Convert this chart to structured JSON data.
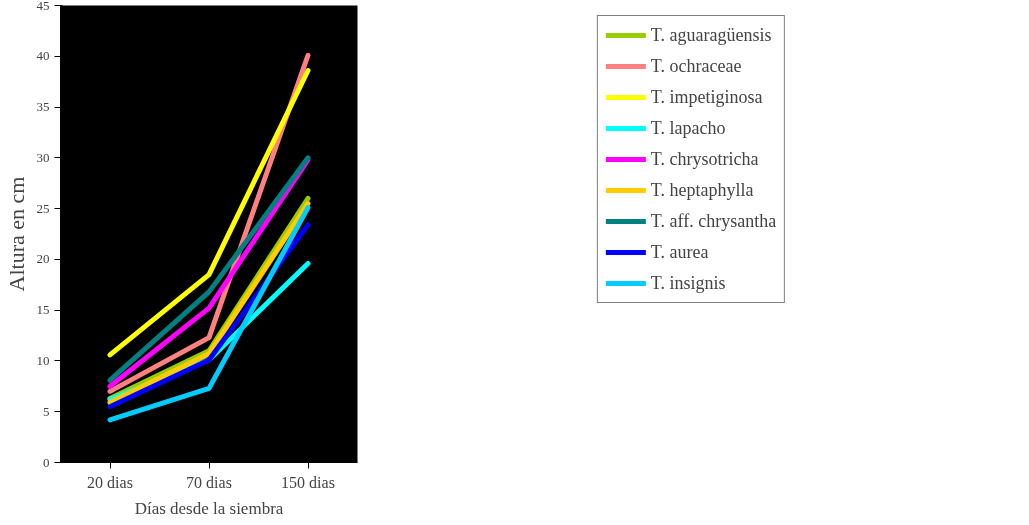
{
  "chart_data": {
    "type": "line",
    "xlabel": "Días desde la siembra",
    "ylabel": "Altura en cm",
    "categories": [
      "20 dias",
      "70 dias",
      "150 dias"
    ],
    "ylim": [
      0,
      45
    ],
    "yticks": [
      0,
      5,
      10,
      15,
      20,
      25,
      30,
      35,
      40,
      45
    ],
    "grid": false,
    "legend": "right",
    "marker": "none",
    "line_style": "solid",
    "series": [
      {
        "name": "T. aguaragüensis",
        "color": "#99cc00",
        "values": [
          6.3,
          11.0,
          26.0
        ]
      },
      {
        "name": "T. ochraceae",
        "color": "#ff8080",
        "values": [
          7.0,
          12.3,
          40.1
        ]
      },
      {
        "name": "T. impetiginosa",
        "color": "#ffff00",
        "values": [
          10.6,
          18.5,
          38.6
        ]
      },
      {
        "name": "T. lapacho",
        "color": "#00ffff",
        "values": [
          6.2,
          10.1,
          19.6
        ]
      },
      {
        "name": "T. chrysotricha",
        "color": "#ff00ff",
        "values": [
          7.5,
          15.2,
          29.8
        ]
      },
      {
        "name": "T. heptaphylla",
        "color": "#ffcc00",
        "values": [
          5.9,
          10.7,
          25.5
        ]
      },
      {
        "name": "T. aff. chrysantha",
        "color": "#008080",
        "values": [
          8.1,
          16.8,
          30.0
        ]
      },
      {
        "name": "T. aurea",
        "color": "#0000ff",
        "values": [
          5.5,
          10.1,
          23.4
        ]
      },
      {
        "name": "T. insignis",
        "color": "#00ccff",
        "values": [
          4.2,
          7.3,
          25.1
        ]
      }
    ]
  }
}
